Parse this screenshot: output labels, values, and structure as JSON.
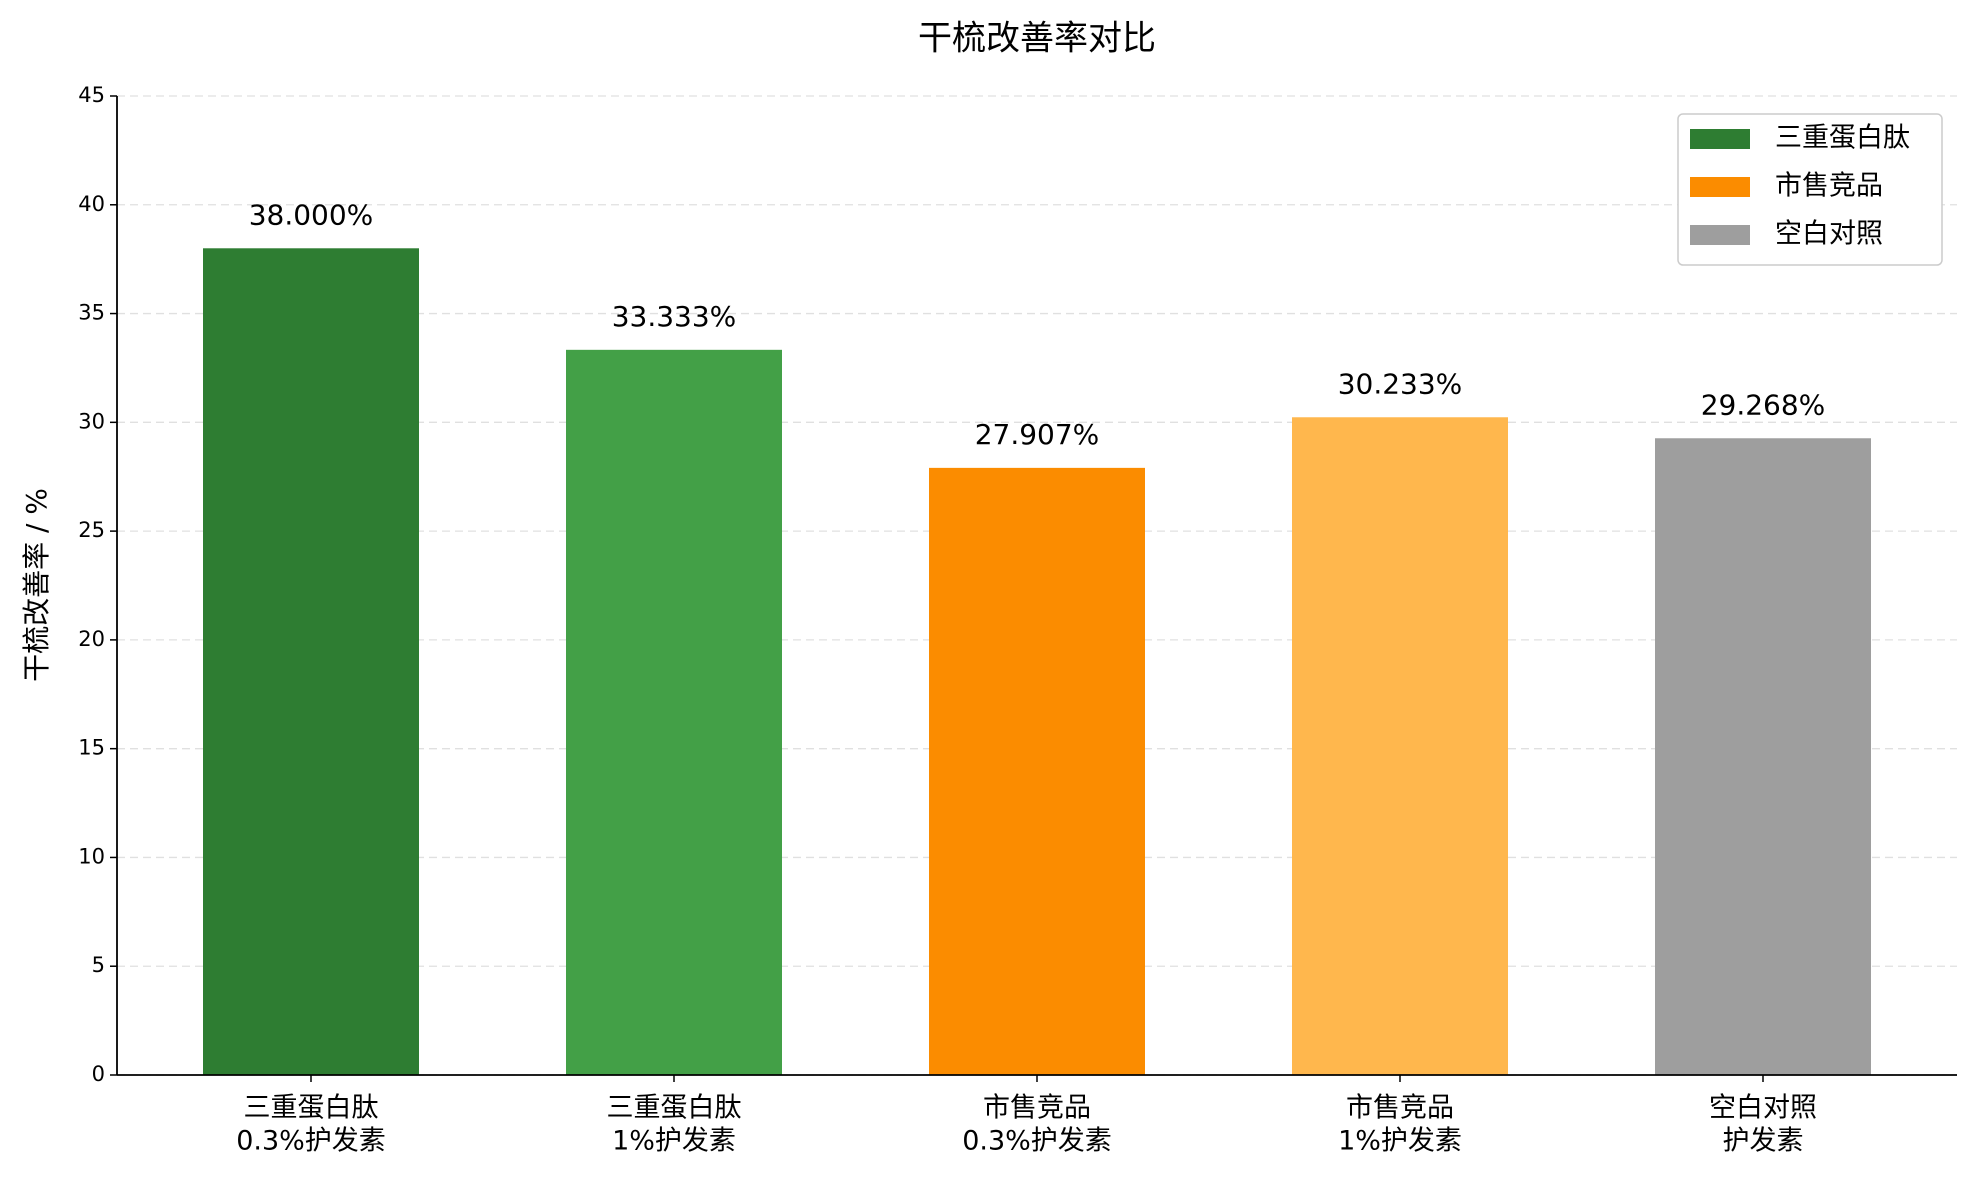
{
  "chart_data": {
    "type": "bar",
    "title": "干梳改善率对比",
    "y_label": "干梳改善率 / %",
    "categories": [
      [
        "三重蛋白肽",
        "0.3%护发素"
      ],
      [
        "三重蛋白肽",
        "1%护发素"
      ],
      [
        "市售竞品",
        "0.3%护发素"
      ],
      [
        "市售竞品",
        "1%护发素"
      ],
      [
        "空白对照",
        "护发素"
      ]
    ],
    "values": [
      38.0,
      33.333,
      27.907,
      30.233,
      29.268
    ],
    "value_labels": [
      "38.000%",
      "33.333%",
      "27.907%",
      "30.233%",
      "29.268%"
    ],
    "colors": [
      "#2e7d32",
      "#43a047",
      "#fb8c00",
      "#ffb74d",
      "#9e9e9e"
    ],
    "legend": [
      {
        "name": "三重蛋白肽",
        "color": "#2e7d32"
      },
      {
        "name": "市售竞品",
        "color": "#fb8c00"
      },
      {
        "name": "空白对照",
        "color": "#9e9e9e"
      }
    ],
    "legend_position": "upper right",
    "ylim": [
      0,
      45
    ],
    "yticks": [
      0,
      5,
      10,
      15,
      20,
      25,
      30,
      35,
      40,
      45
    ],
    "grid": true
  }
}
